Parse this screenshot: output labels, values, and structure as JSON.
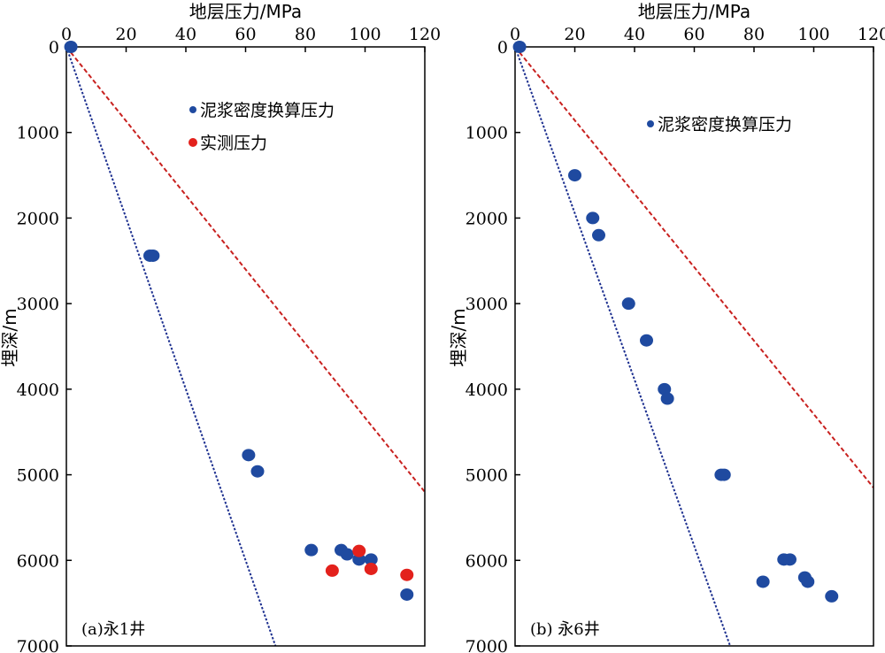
{
  "chart_data": [
    {
      "type": "scatter",
      "panel_label": "(a)永1井",
      "xlabel": "地层压力/MPa",
      "ylabel": "埋深/m",
      "xlim": [
        0,
        120
      ],
      "ylim": [
        0,
        7000
      ],
      "y_inverted": true,
      "x_axis_position": "top",
      "xticks": [
        "0",
        "20",
        "40",
        "60",
        "80",
        "100",
        "120"
      ],
      "yticks": [
        "0",
        "1000",
        "2000",
        "3000",
        "4000",
        "5000",
        "6000",
        "7000"
      ],
      "legend_placement": "upper-middle",
      "reference_lines": [
        {
          "color": "#1c2f8f",
          "style": "dotted",
          "points": [
            [
              0,
              0
            ],
            [
              70,
              7000
            ]
          ]
        },
        {
          "color": "#c8211f",
          "style": "dashed",
          "points": [
            [
              0,
              0
            ],
            [
              120,
              5200
            ]
          ]
        }
      ],
      "series": [
        {
          "name": "泥浆密度换算压力",
          "color": "#1f4aa0",
          "points": [
            [
              1.5,
              0
            ],
            [
              29,
              2440
            ],
            [
              28,
              2440
            ],
            [
              61,
              4770
            ],
            [
              64,
              4960
            ],
            [
              82,
              5880
            ],
            [
              92,
              5880
            ],
            [
              94,
              5930
            ],
            [
              98,
              5990
            ],
            [
              102,
              5990
            ],
            [
              114,
              6400
            ]
          ]
        },
        {
          "name": "实测压力",
          "color": "#e3211c",
          "points": [
            [
              98,
              5890
            ],
            [
              89,
              6120
            ],
            [
              102,
              6100
            ],
            [
              114,
              6170
            ]
          ]
        }
      ]
    },
    {
      "type": "scatter",
      "panel_label": "(b) 永6井",
      "xlabel": "地层压力/MPa",
      "ylabel": "埋深/m",
      "xlim": [
        0,
        120
      ],
      "ylim": [
        0,
        7000
      ],
      "y_inverted": true,
      "x_axis_position": "top",
      "xticks": [
        "0",
        "20",
        "40",
        "60",
        "80",
        "100",
        "120"
      ],
      "yticks": [
        "0",
        "1000",
        "2000",
        "3000",
        "4000",
        "5000",
        "6000",
        "7000"
      ],
      "legend_placement": "upper-middle",
      "reference_lines": [
        {
          "color": "#1c2f8f",
          "style": "dotted",
          "points": [
            [
              0,
              0
            ],
            [
              72,
              7000
            ]
          ]
        },
        {
          "color": "#c8211f",
          "style": "dashed",
          "points": [
            [
              0,
              0
            ],
            [
              120,
              5150
            ]
          ]
        }
      ],
      "series": [
        {
          "name": "泥浆密度换算压力",
          "color": "#1f4aa0",
          "points": [
            [
              1.5,
              0
            ],
            [
              20,
              1500
            ],
            [
              26,
              2000
            ],
            [
              28,
              2200
            ],
            [
              38,
              3000
            ],
            [
              44,
              3430
            ],
            [
              50,
              4000
            ],
            [
              51,
              4110
            ],
            [
              69,
              5000
            ],
            [
              70,
              5000
            ],
            [
              90,
              5990
            ],
            [
              92,
              5990
            ],
            [
              83,
              6250
            ],
            [
              97,
              6200
            ],
            [
              98,
              6250
            ],
            [
              106,
              6420
            ]
          ]
        }
      ]
    }
  ]
}
